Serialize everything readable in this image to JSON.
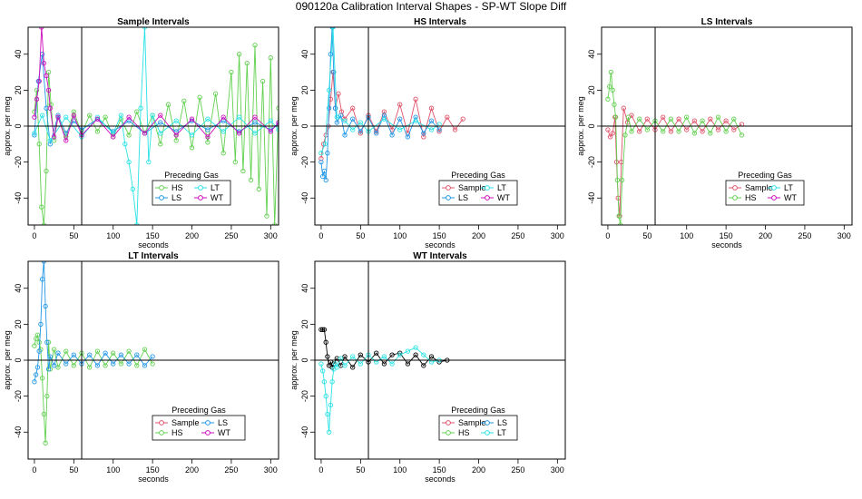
{
  "figure": {
    "title": "090120a   Calibration Interval Shapes - SP-WT Slope Diff",
    "series_colors": {
      "Sample": "#DF536B",
      "HS": "#61D04F",
      "LS": "#2297E6",
      "LT": "#28E2E5",
      "WT": "#CD0BBC",
      "Unlabeled": "#000000"
    }
  },
  "chart_data": [
    {
      "type": "line",
      "title": "Sample Intervals",
      "xlabel": "seconds",
      "ylabel": "approx. per meg",
      "xlim": [
        -8,
        310
      ],
      "ylim": [
        -55,
        55
      ],
      "xticks": [
        0,
        50,
        100,
        150,
        200,
        250,
        300
      ],
      "yticks": [
        -40,
        -20,
        0,
        20,
        40
      ],
      "vline": 60,
      "hline": 0,
      "legend": {
        "title": "Preceding Gas",
        "entries": [
          "HS",
          "LT",
          "LS",
          "WT"
        ],
        "placement": "bottom-center"
      },
      "series": [
        {
          "name": "HS",
          "color": "#61D04F",
          "x": [
            0,
            3,
            6,
            9,
            12,
            15,
            18,
            21,
            25,
            30,
            40,
            50,
            60,
            70,
            80,
            90,
            100,
            110,
            120,
            130,
            140,
            150,
            160,
            170,
            180,
            190,
            200,
            210,
            220,
            230,
            240,
            250,
            255,
            260,
            265,
            270,
            275,
            280,
            285,
            290,
            295,
            300,
            305,
            310
          ],
          "y": [
            8,
            20,
            -10,
            -45,
            -55,
            -25,
            30,
            12,
            -8,
            5,
            -6,
            8,
            -4,
            6,
            -3,
            5,
            -6,
            4,
            -5,
            8,
            -4,
            6,
            -10,
            12,
            -8,
            14,
            -12,
            16,
            -9,
            18,
            -15,
            30,
            -20,
            40,
            -25,
            35,
            -30,
            45,
            -35,
            25,
            -50,
            38,
            -55,
            10
          ]
        },
        {
          "name": "LS",
          "color": "#2297E6",
          "x": [
            0,
            5,
            10,
            15,
            20,
            30,
            40,
            50,
            60,
            80,
            100,
            120,
            140,
            160,
            180,
            200,
            220,
            240,
            260,
            280,
            300,
            310
          ],
          "y": [
            -5,
            25,
            40,
            10,
            -10,
            6,
            -4,
            3,
            -2,
            4,
            -3,
            3,
            -4,
            2,
            -3,
            3,
            -2,
            3,
            -3,
            2,
            -2,
            1
          ]
        },
        {
          "name": "LT",
          "color": "#28E2E5",
          "x": [
            0,
            10,
            20,
            40,
            60,
            80,
            100,
            110,
            115,
            120,
            125,
            130,
            135,
            140,
            145,
            150,
            160,
            180,
            200,
            220,
            240,
            260,
            280,
            300,
            310
          ],
          "y": [
            -4,
            6,
            -8,
            5,
            -6,
            5,
            -4,
            6,
            -10,
            -20,
            -35,
            -55,
            10,
            55,
            -20,
            6,
            -4,
            3,
            -5,
            4,
            -3,
            5,
            -4,
            3,
            -2
          ]
        },
        {
          "name": "WT",
          "color": "#CD0BBC",
          "x": [
            0,
            3,
            6,
            9,
            12,
            15,
            18,
            20,
            25,
            30,
            40,
            50,
            60,
            80,
            100,
            120,
            140,
            160,
            180,
            200,
            220,
            240,
            260,
            280,
            300,
            310
          ],
          "y": [
            5,
            15,
            25,
            55,
            35,
            28,
            20,
            10,
            -6,
            5,
            -8,
            6,
            -5,
            4,
            -6,
            5,
            -4,
            6,
            -5,
            4,
            -6,
            5,
            -4,
            5,
            -3,
            2
          ]
        }
      ]
    },
    {
      "type": "line",
      "title": "HS Intervals",
      "xlabel": "seconds",
      "ylabel": "approx. per meg",
      "xlim": [
        -8,
        310
      ],
      "ylim": [
        -55,
        55
      ],
      "xticks": [
        0,
        50,
        100,
        150,
        200,
        250,
        300
      ],
      "yticks": [
        -40,
        -20,
        0,
        20,
        40
      ],
      "vline": 60,
      "hline": 0,
      "legend": {
        "title": "Preceding Gas",
        "entries": [
          "Sample",
          "LT",
          "LS",
          "WT"
        ],
        "placement": "bottom-center"
      },
      "series": [
        {
          "name": "Sample",
          "color": "#DF536B",
          "x": [
            0,
            3,
            6,
            9,
            12,
            15,
            18,
            22,
            26,
            30,
            40,
            50,
            60,
            70,
            80,
            90,
            100,
            110,
            120,
            130,
            140,
            150,
            160,
            170,
            180
          ],
          "y": [
            -18,
            -10,
            -5,
            0,
            15,
            30,
            10,
            18,
            8,
            4,
            10,
            -4,
            6,
            -3,
            8,
            -2,
            12,
            -4,
            15,
            -6,
            10,
            -3,
            5,
            -2,
            4
          ]
        },
        {
          "name": "LS",
          "color": "#2297E6",
          "x": [
            0,
            2,
            4,
            6,
            8,
            10,
            12,
            14,
            16,
            18,
            20,
            25,
            30,
            40,
            50,
            60,
            70,
            80,
            90,
            100,
            110,
            120,
            130,
            140,
            150
          ],
          "y": [
            -20,
            -28,
            -25,
            -30,
            -15,
            10,
            40,
            55,
            30,
            10,
            2,
            6,
            -5,
            4,
            -3,
            5,
            -4,
            6,
            -5,
            4,
            -6,
            5,
            -4,
            3,
            -2
          ]
        },
        {
          "name": "LT",
          "color": "#28E2E5",
          "x": [
            0,
            5,
            10,
            15,
            20,
            30,
            40,
            50,
            60,
            80,
            100,
            120,
            140,
            150
          ],
          "y": [
            -15,
            -10,
            20,
            55,
            5,
            3,
            -2,
            2,
            -3,
            4,
            -2,
            3,
            -2,
            1
          ]
        }
      ]
    },
    {
      "type": "line",
      "title": "LS Intervals",
      "xlabel": "seconds",
      "ylabel": "approx. per meg",
      "xlim": [
        -8,
        310
      ],
      "ylim": [
        -55,
        55
      ],
      "xticks": [
        0,
        50,
        100,
        150,
        200,
        250,
        300
      ],
      "yticks": [
        -40,
        -20,
        0,
        20,
        40
      ],
      "vline": 60,
      "hline": 0,
      "legend": {
        "title": "Preceding Gas",
        "entries": [
          "Sample",
          "LT",
          "HS",
          "WT"
        ],
        "placement": "bottom-center"
      },
      "series": [
        {
          "name": "Sample",
          "color": "#DF536B",
          "x": [
            0,
            3,
            6,
            9,
            11,
            13,
            15,
            17,
            20,
            25,
            30,
            40,
            50,
            60,
            70,
            80,
            90,
            100,
            110,
            120,
            130,
            140,
            150,
            160,
            170
          ],
          "y": [
            -2,
            -6,
            -4,
            5,
            -20,
            -40,
            -50,
            -20,
            10,
            2,
            6,
            -3,
            4,
            -2,
            5,
            -3,
            4,
            -2,
            3,
            -3,
            4,
            -2,
            3,
            -2,
            1
          ]
        },
        {
          "name": "HS",
          "color": "#61D04F",
          "x": [
            0,
            2,
            4,
            6,
            8,
            10,
            12,
            14,
            16,
            18,
            22,
            26,
            30,
            40,
            50,
            60,
            70,
            80,
            90,
            100,
            110,
            120,
            130,
            140,
            150,
            160,
            170
          ],
          "y": [
            15,
            22,
            30,
            20,
            12,
            5,
            -30,
            -50,
            -55,
            -30,
            -5,
            5,
            -3,
            4,
            -2,
            3,
            -3,
            4,
            -3,
            5,
            -4,
            3,
            -4,
            5,
            -3,
            4,
            -5
          ]
        }
      ]
    },
    {
      "type": "line",
      "title": "LT Intervals",
      "xlabel": "seconds",
      "ylabel": "approx. per meg",
      "xlim": [
        -8,
        310
      ],
      "ylim": [
        -55,
        55
      ],
      "xticks": [
        0,
        50,
        100,
        150,
        200,
        250,
        300
      ],
      "yticks": [
        -40,
        -20,
        0,
        20,
        40
      ],
      "vline": 60,
      "hline": 0,
      "legend": {
        "title": "Preceding Gas",
        "entries": [
          "Sample",
          "LS",
          "HS",
          "WT"
        ],
        "placement": "bottom-center"
      },
      "series": [
        {
          "name": "HS",
          "color": "#61D04F",
          "x": [
            0,
            2,
            4,
            6,
            8,
            10,
            12,
            14,
            16,
            18,
            20,
            25,
            30,
            40,
            50,
            60,
            70,
            80,
            90,
            100,
            110,
            120,
            130,
            140,
            150
          ],
          "y": [
            8,
            12,
            14,
            10,
            6,
            -10,
            -30,
            -46,
            -20,
            10,
            -5,
            6,
            -4,
            5,
            -3,
            4,
            -4,
            5,
            -3,
            4,
            -2,
            5,
            -3,
            6,
            -2
          ]
        },
        {
          "name": "LS",
          "color": "#2297E6",
          "x": [
            0,
            2,
            4,
            6,
            8,
            10,
            12,
            14,
            16,
            18,
            20,
            25,
            30,
            40,
            50,
            60,
            70,
            80,
            90,
            100,
            110,
            120,
            130,
            140,
            150
          ],
          "y": [
            -12,
            -8,
            -4,
            5,
            20,
            45,
            55,
            30,
            10,
            -5,
            2,
            -3,
            4,
            -2,
            3,
            -2,
            3,
            -3,
            4,
            -2,
            3,
            -2,
            3,
            -3,
            2
          ]
        }
      ]
    },
    {
      "type": "line",
      "title": "WT Intervals",
      "xlabel": "seconds",
      "ylabel": "approx. per meg",
      "xlim": [
        -8,
        310
      ],
      "ylim": [
        -55,
        55
      ],
      "xticks": [
        0,
        50,
        100,
        150,
        200,
        250,
        300
      ],
      "yticks": [
        -40,
        -20,
        0,
        20,
        40
      ],
      "vline": 60,
      "hline": 0,
      "legend": {
        "title": "Preceding Gas",
        "entries": [
          "Sample",
          "LS",
          "HS",
          "LT"
        ],
        "placement": "bottom-center"
      },
      "series": [
        {
          "name": "Unlabeled",
          "color": "#000000",
          "x": [
            0,
            2,
            4,
            6,
            8,
            10,
            12,
            14,
            16,
            20,
            25,
            30,
            40,
            50,
            60,
            70,
            80,
            90,
            100,
            110,
            120,
            130,
            140,
            150,
            160
          ],
          "y": [
            17,
            17,
            17,
            10,
            2,
            -3,
            -1,
            -4,
            -2,
            1,
            -3,
            2,
            -4,
            3,
            -1,
            4,
            -2,
            3,
            4,
            -2,
            3,
            -3,
            2,
            -1,
            0
          ]
        },
        {
          "name": "LT",
          "color": "#28E2E5",
          "x": [
            0,
            2,
            4,
            6,
            8,
            10,
            12,
            14,
            16,
            18,
            20,
            25,
            30,
            40,
            50,
            60,
            70,
            80,
            90,
            100,
            110,
            120,
            130,
            140,
            150
          ],
          "y": [
            -2,
            -6,
            -12,
            -20,
            -30,
            -40,
            -25,
            -12,
            -5,
            -2,
            -4,
            1,
            -3,
            2,
            -2,
            3,
            -1,
            2,
            -2,
            3,
            5,
            7,
            3,
            -1,
            0
          ]
        }
      ]
    }
  ]
}
